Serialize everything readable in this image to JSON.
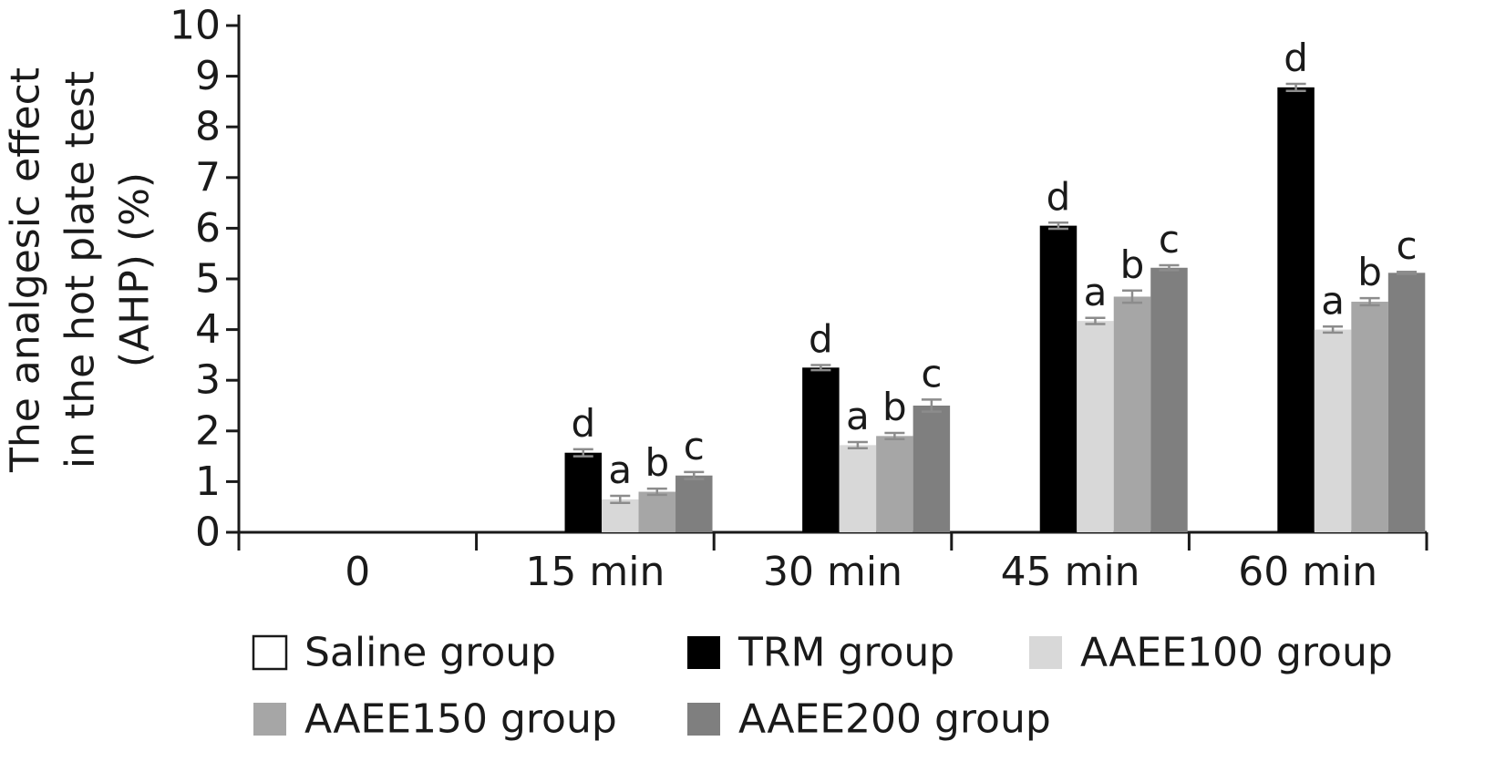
{
  "chart_data": {
    "type": "bar",
    "ylabel_lines": [
      "The analgesic effect",
      "in the hot plate test",
      "(AHP) (%)"
    ],
    "ylim": [
      0,
      10
    ],
    "yticks": [
      "0",
      "1",
      "2",
      "3",
      "4",
      "5",
      "6",
      "7",
      "8",
      "9",
      "10"
    ],
    "categories": [
      "0",
      "15 min",
      "30 min",
      "45 min",
      "60 min"
    ],
    "series": [
      {
        "name": "Saline group",
        "color": "#ffffff",
        "values": [
          0,
          0,
          0,
          0,
          0
        ],
        "errors": [
          0,
          0,
          0,
          0,
          0
        ],
        "labels": [
          "",
          "",
          "",
          "",
          ""
        ]
      },
      {
        "name": "TRM group",
        "color": "#000000",
        "values": [
          0,
          1.57,
          3.25,
          6.05,
          8.78
        ],
        "errors": [
          0,
          0.07,
          0.05,
          0.06,
          0.07
        ],
        "labels": [
          "",
          "d",
          "d",
          "d",
          "d"
        ]
      },
      {
        "name": "AAEE100 group",
        "color": "#d8d8d8",
        "values": [
          0,
          0.65,
          1.72,
          4.17,
          4.0
        ],
        "errors": [
          0,
          0.07,
          0.06,
          0.06,
          0.06
        ],
        "labels": [
          "",
          "a",
          "a",
          "a",
          "a"
        ]
      },
      {
        "name": "AAEE150 group",
        "color": "#a6a6a6",
        "values": [
          0,
          0.8,
          1.9,
          4.65,
          4.55
        ],
        "errors": [
          0,
          0.06,
          0.06,
          0.12,
          0.07
        ],
        "labels": [
          "",
          "b",
          "b",
          "b",
          "b"
        ]
      },
      {
        "name": "AAEE200 group",
        "color": "#7f7f7f",
        "values": [
          0,
          1.12,
          2.5,
          5.22,
          5.12
        ],
        "errors": [
          0,
          0.07,
          0.12,
          0.05,
          0.02
        ],
        "labels": [
          "",
          "c",
          "c",
          "c",
          "c"
        ]
      }
    ],
    "legend": {
      "placement": "bottom",
      "columns": 3
    },
    "grid": false
  }
}
